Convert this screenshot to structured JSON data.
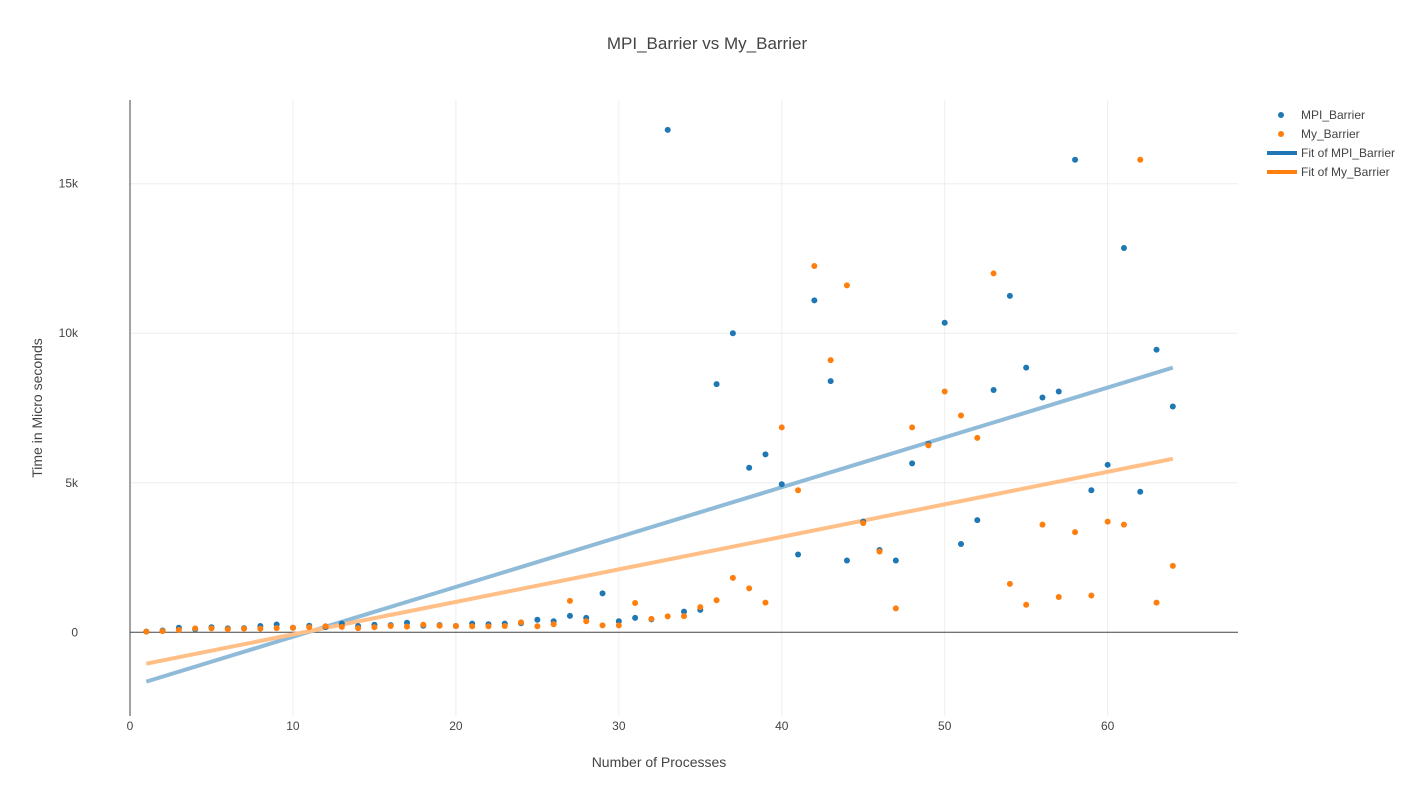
{
  "chart_data": {
    "type": "scatter",
    "title": "MPI_Barrier vs My_Barrier",
    "xlabel": "Number of Processes",
    "ylabel": "Time in Micro seconds",
    "xlim": [
      0,
      68
    ],
    "ylim": [
      -2800,
      17800
    ],
    "x_ticks": [
      0,
      10,
      20,
      30,
      40,
      50,
      60
    ],
    "x_tick_labels": [
      "0",
      "10",
      "20",
      "30",
      "40",
      "50",
      "60"
    ],
    "y_ticks": [
      0,
      5000,
      10000,
      15000
    ],
    "y_tick_labels": [
      "0",
      "5k",
      "10k",
      "15k"
    ],
    "grid": true,
    "legend_position": "top-right",
    "colors": {
      "mpi": "#1f77b4",
      "my": "#ff7f0e",
      "fit_mpi": "#8fbbd9",
      "fit_my": "#ffbf87"
    },
    "x": [
      1,
      2,
      3,
      4,
      5,
      6,
      7,
      8,
      9,
      10,
      11,
      12,
      13,
      14,
      15,
      16,
      17,
      18,
      19,
      20,
      21,
      22,
      23,
      24,
      25,
      26,
      27,
      28,
      29,
      30,
      31,
      32,
      33,
      34,
      35,
      36,
      37,
      38,
      39,
      40,
      41,
      42,
      43,
      44,
      45,
      46,
      47,
      48,
      49,
      50,
      51,
      52,
      53,
      54,
      55,
      56,
      57,
      58,
      59,
      60,
      61,
      62,
      63,
      64
    ],
    "series": [
      {
        "name": "MPI_Barrier",
        "mode": "markers",
        "color": "#1f77b4",
        "values": [
          20,
          60,
          150,
          100,
          170,
          130,
          140,
          210,
          260,
          150,
          220,
          170,
          290,
          210,
          250,
          240,
          320,
          220,
          240,
          210,
          290,
          270,
          290,
          300,
          420,
          370,
          550,
          480,
          1300,
          370,
          480,
          430,
          16800,
          690,
          750,
          8300,
          10000,
          5500,
          5950,
          4950,
          2600,
          11100,
          8400,
          2400,
          3700,
          2750,
          2400,
          5650,
          6300,
          10350,
          2950,
          3750,
          8100,
          11250,
          8850,
          7850,
          8050,
          15800,
          4750,
          5600,
          12850,
          4700,
          9450,
          7550
        ]
      },
      {
        "name": "My_Barrier",
        "mode": "markers",
        "color": "#ff7f0e",
        "values": [
          20,
          40,
          80,
          130,
          130,
          100,
          120,
          120,
          140,
          150,
          170,
          200,
          180,
          140,
          170,
          210,
          190,
          250,
          220,
          210,
          200,
          200,
          210,
          330,
          200,
          270,
          1050,
          370,
          230,
          230,
          980,
          450,
          530,
          540,
          840,
          1070,
          1820,
          1470,
          990,
          6850,
          4750,
          12250,
          9100,
          11600,
          3650,
          2700,
          800,
          6850,
          6250,
          8050,
          7250,
          6500,
          12000,
          1620,
          920,
          3600,
          1180,
          3350,
          1230,
          3700,
          3600,
          15800,
          990,
          2220
        ]
      },
      {
        "name": "Fit of MPI_Barrier",
        "mode": "line",
        "color": "#8fbbd9",
        "x_range": [
          1,
          64
        ],
        "values": [
          -1650,
          8850
        ]
      },
      {
        "name": "Fit of My_Barrier",
        "mode": "line",
        "color": "#ffbf87",
        "x_range": [
          1,
          64
        ],
        "values": [
          -1050,
          5800
        ]
      }
    ]
  }
}
